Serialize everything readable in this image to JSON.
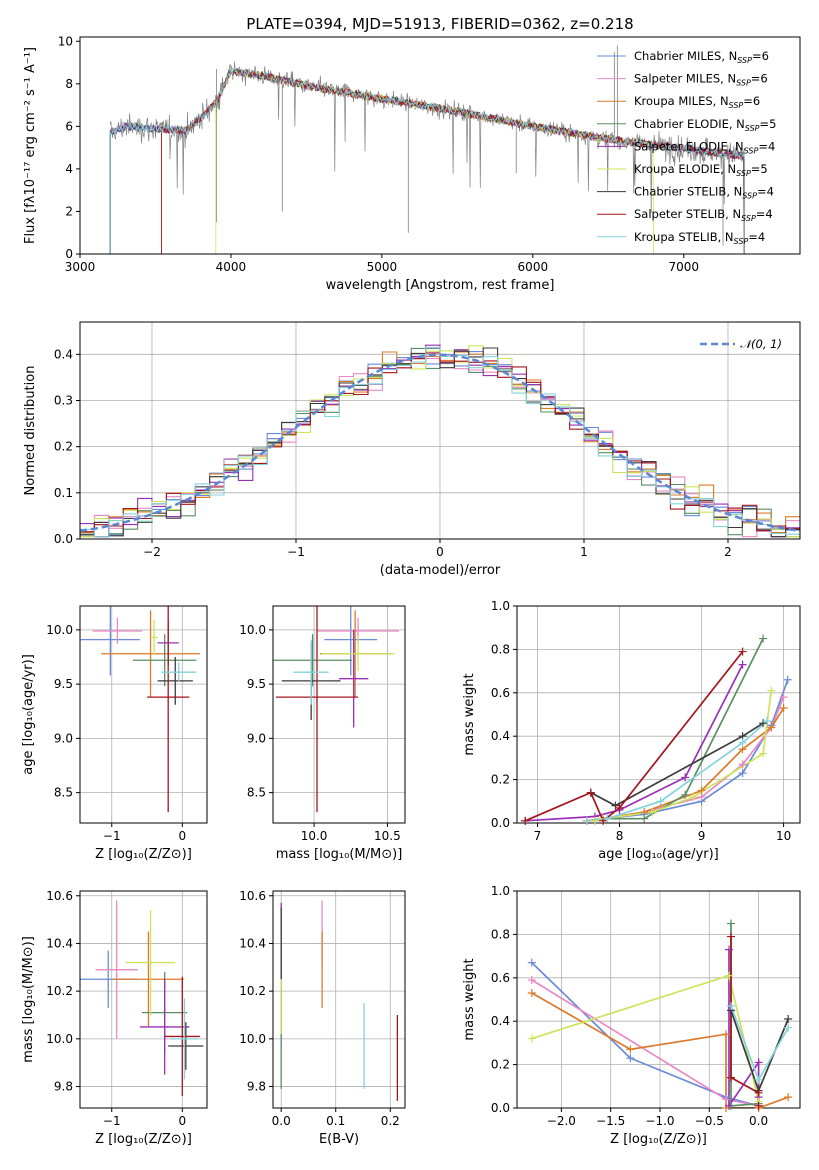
{
  "figure": {
    "title": "PLATE=0394, MJD=51913, FIBERID=0362, z=0.218"
  },
  "colors": {
    "Chabrier MILES": "#6a8bd8",
    "Salpeter MILES": "#e889c4",
    "Kroupa MILES": "#dd7a2a",
    "Chabrier ELODIE": "#5a8f64",
    "Salpeter ELODIE": "#9b2fb5",
    "Kroupa ELODIE": "#cde35a",
    "Chabrier STELIB": "#3a3a3a",
    "Salpeter STELIB": "#a3151c",
    "Kroupa STELIB": "#86d1dc",
    "data": "#808080",
    "normal": "#5b87d4"
  },
  "chart_data": [
    {
      "id": "spectrum",
      "type": "line",
      "title": "PLATE=0394, MJD=51913, FIBERID=0362, z=0.218",
      "xlabel": "wavelength [Angstrom, rest frame]",
      "ylabel": "Flux [fλ10⁻¹⁷ erg cm⁻² s⁻¹ A⁻¹]",
      "xlim": [
        3000,
        7770
      ],
      "ylim": [
        0,
        10.2
      ],
      "xticks": [
        3000,
        4000,
        5000,
        6000,
        7000
      ],
      "yticks": [
        0,
        2,
        4,
        6,
        8,
        10
      ],
      "legend_position": "top-right",
      "legend": [
        {
          "name": "Chabrier MILES",
          "label": "Chabrier MILES, N",
          "nssp": "=6"
        },
        {
          "name": "Salpeter MILES",
          "label": "Salpeter MILES, N",
          "nssp": "=6"
        },
        {
          "name": "Kroupa MILES",
          "label": "Kroupa MILES, N",
          "nssp": "=6"
        },
        {
          "name": "Chabrier ELODIE",
          "label": "Chabrier ELODIE, N",
          "nssp": "=5"
        },
        {
          "name": "Salpeter ELODIE",
          "label": "Salpeter ELODIE, N",
          "nssp": "=4"
        },
        {
          "name": "Kroupa ELODIE",
          "label": "Kroupa ELODIE, N",
          "nssp": "=5"
        },
        {
          "name": "Chabrier STELIB",
          "label": "Chabrier STELIB, N",
          "nssp": "=4"
        },
        {
          "name": "Salpeter STELIB",
          "label": "Salpeter STELIB, N",
          "nssp": "=4"
        },
        {
          "name": "Kroupa STELIB",
          "label": "Kroupa STELIB, N",
          "nssp": "=4"
        }
      ],
      "continuum": [
        [
          3200,
          5.7
        ],
        [
          3300,
          6.0
        ],
        [
          3500,
          5.9
        ],
        [
          3700,
          5.8
        ],
        [
          3800,
          6.4
        ],
        [
          3900,
          7.1
        ],
        [
          4000,
          8.6
        ],
        [
          4200,
          8.4
        ],
        [
          4500,
          7.9
        ],
        [
          5000,
          7.3
        ],
        [
          5500,
          6.7
        ],
        [
          6000,
          6.0
        ],
        [
          6500,
          5.4
        ],
        [
          7000,
          4.95
        ],
        [
          7400,
          4.6
        ]
      ],
      "model_ranges": [
        [
          3200,
          7400
        ],
        [
          3200,
          7400
        ],
        [
          3540,
          7400
        ],
        [
          3200,
          7400
        ],
        [
          3200,
          7400
        ],
        [
          3900,
          6800
        ],
        [
          3200,
          7400
        ],
        [
          3540,
          7400
        ],
        [
          3200,
          7400
        ]
      ]
    },
    {
      "id": "residuals",
      "type": "histogram",
      "xlabel": "(data-model)/error",
      "ylabel": "Normed distribution",
      "xlim": [
        -2.5,
        2.5
      ],
      "ylim": [
        0,
        0.47
      ],
      "xticks": [
        -2,
        -1,
        0,
        1,
        2
      ],
      "yticks": [
        0.0,
        0.1,
        0.2,
        0.3,
        0.4
      ],
      "legend": [
        "𝒩(0, 1)"
      ],
      "legend_position": "top-right",
      "bin_width": 0.1
    },
    {
      "id": "age-vs-z",
      "type": "scatter",
      "xlabel": "Z [log₁₀(Z/Z⊙)]",
      "ylabel": "age  [log₁₀(age/yr)]",
      "xlim": [
        -1.45,
        0.35
      ],
      "ylim": [
        8.22,
        10.22
      ],
      "xticks": [
        -1,
        0
      ],
      "yticks": [
        8.5,
        9.0,
        9.5,
        10.0
      ],
      "points": [
        {
          "x": -1.02,
          "y": 9.91,
          "xerr": 0.42,
          "yerr": 0.33
        },
        {
          "x": -0.92,
          "y": 9.99,
          "xerr": 0.35,
          "yerr": 0.12
        },
        {
          "x": -0.45,
          "y": 9.78,
          "xerr": 0.7,
          "yerr": 0.4
        },
        {
          "x": -0.25,
          "y": 9.72,
          "xerr": 0.45,
          "yerr": 0.24
        },
        {
          "x": -0.2,
          "y": 9.88,
          "xerr": 0.15,
          "yerr": 0.2
        },
        {
          "x": -0.4,
          "y": 9.93,
          "xerr": 0.05,
          "yerr": 0.16
        },
        {
          "x": -0.1,
          "y": 9.53,
          "xerr": 0.25,
          "yerr": 0.22
        },
        {
          "x": -0.2,
          "y": 9.38,
          "xerr": 0.3,
          "yerr": 1.06
        },
        {
          "x": -0.05,
          "y": 9.61,
          "xerr": 0.25,
          "yerr": 0.09
        }
      ]
    },
    {
      "id": "age-vs-mass",
      "type": "scatter",
      "xlabel": "mass [log₁₀(M/M⊙)]",
      "ylabel": "",
      "xlim": [
        9.72,
        10.62
      ],
      "ylim": [
        8.22,
        10.22
      ],
      "xticks": [
        10.0,
        10.5
      ],
      "yticks": [
        8.5,
        9.0,
        9.5,
        10.0
      ],
      "points": [
        {
          "x": 10.25,
          "y": 9.91,
          "xerr": 0.18,
          "yerr": 0.33
        },
        {
          "x": 10.3,
          "y": 9.99,
          "xerr": 0.28,
          "yerr": 0.12
        },
        {
          "x": 10.28,
          "y": 9.78,
          "xerr": 0.24,
          "yerr": 0.4
        },
        {
          "x": 9.99,
          "y": 9.72,
          "xerr": 0.27,
          "yerr": 0.24
        },
        {
          "x": 10.27,
          "y": 9.55,
          "xerr": 0.1,
          "yerr": 0.45
        },
        {
          "x": 10.3,
          "y": 9.78,
          "xerr": 0.25,
          "yerr": 0.16
        },
        {
          "x": 9.98,
          "y": 9.53,
          "xerr": 0.2,
          "yerr": 0.36
        },
        {
          "x": 10.02,
          "y": 9.38,
          "xerr": 0.28,
          "yerr": 1.06
        },
        {
          "x": 9.98,
          "y": 9.61,
          "xerr": 0.12,
          "yerr": 0.3
        }
      ]
    },
    {
      "id": "weight-vs-age",
      "type": "line",
      "xlabel": "age  [log₁₀(age/yr)]",
      "ylabel": "mass weight",
      "xlim": [
        6.75,
        10.2
      ],
      "ylim": [
        0,
        1.0
      ],
      "xticks": [
        7,
        8,
        9,
        10
      ],
      "yticks": [
        0.0,
        0.2,
        0.4,
        0.6,
        0.8,
        1.0
      ],
      "series": [
        {
          "x": [
            7.6,
            7.8,
            8.3,
            9.0,
            9.5,
            9.85,
            10.05
          ],
          "y": [
            0.01,
            0.02,
            0.04,
            0.1,
            0.23,
            0.45,
            0.66
          ]
        },
        {
          "x": [
            7.6,
            7.8,
            8.3,
            9.0,
            9.5,
            9.85,
            10.0
          ],
          "y": [
            0.01,
            0.02,
            0.05,
            0.12,
            0.27,
            0.44,
            0.58
          ]
        },
        {
          "x": [
            7.6,
            7.8,
            8.3,
            9.0,
            9.5,
            9.85,
            10.0
          ],
          "y": [
            0.01,
            0.02,
            0.05,
            0.15,
            0.34,
            0.44,
            0.53
          ]
        },
        {
          "x": [
            7.7,
            7.8,
            8.3,
            8.8,
            9.75
          ],
          "y": [
            0.01,
            0.02,
            0.02,
            0.13,
            0.85
          ]
        },
        {
          "x": [
            6.85,
            7.7,
            8.0,
            8.8,
            9.5
          ],
          "y": [
            0.01,
            0.03,
            0.06,
            0.21,
            0.73
          ]
        },
        {
          "x": [
            7.7,
            7.8,
            8.4,
            8.9,
            9.75,
            9.85
          ],
          "y": [
            0.01,
            0.02,
            0.05,
            0.12,
            0.32,
            0.61
          ]
        },
        {
          "x": [
            7.65,
            7.95,
            9.5,
            9.75
          ],
          "y": [
            0.14,
            0.08,
            0.4,
            0.46
          ]
        },
        {
          "x": [
            6.85,
            7.65,
            7.8,
            8.0,
            9.5
          ],
          "y": [
            0.01,
            0.14,
            0.01,
            0.07,
            0.79
          ]
        },
        {
          "x": [
            7.6,
            7.85,
            8.5,
            9.5,
            9.8
          ],
          "y": [
            0.01,
            0.02,
            0.1,
            0.37,
            0.47
          ]
        }
      ]
    },
    {
      "id": "mass-vs-z",
      "type": "scatter",
      "xlabel": "Z [log₁₀(Z/Z⊙)]",
      "ylabel": "mass [log₁₀(M/M⊙)]",
      "xlim": [
        -1.45,
        0.35
      ],
      "ylim": [
        9.71,
        10.62
      ],
      "xticks": [
        -1,
        0
      ],
      "yticks": [
        9.8,
        10.0,
        10.2,
        10.4,
        10.6
      ],
      "points": [
        {
          "x": -1.05,
          "y": 10.25,
          "xerr": 0.42,
          "yerr": 0.12
        },
        {
          "x": -0.93,
          "y": 10.29,
          "xerr": 0.3,
          "yerr": 0.29
        },
        {
          "x": -0.48,
          "y": 10.25,
          "xerr": 0.5,
          "yerr": 0.2
        },
        {
          "x": -0.25,
          "y": 10.11,
          "xerr": 0.32,
          "yerr": 0.17
        },
        {
          "x": -0.25,
          "y": 10.05,
          "xerr": 0.35,
          "yerr": 0.2
        },
        {
          "x": -0.45,
          "y": 10.32,
          "xerr": 0.35,
          "yerr": 0.22
        },
        {
          "x": 0.05,
          "y": 9.97,
          "xerr": 0.25,
          "yerr": 0.1
        },
        {
          "x": 0.0,
          "y": 10.01,
          "xerr": 0.25,
          "yerr": 0.25
        },
        {
          "x": 0.03,
          "y": 10.0,
          "xerr": 0.2,
          "yerr": 0.17
        }
      ]
    },
    {
      "id": "mass-vs-ebv",
      "type": "scatter",
      "xlabel": "E(B-V)",
      "ylabel": "",
      "xlim": [
        -0.015,
        0.227
      ],
      "ylim": [
        9.71,
        10.62
      ],
      "xticks": [
        0.0,
        0.1,
        0.2
      ],
      "yticks": [
        9.8,
        10.0,
        10.2,
        10.4,
        10.6
      ],
      "points": [
        {
          "x": 0.0,
          "y": 10.25,
          "xerr": 0,
          "yerr": 0.28
        },
        {
          "x": 0.075,
          "y": 10.45,
          "xerr": 0,
          "yerr": 0.13
        },
        {
          "x": 0.075,
          "y": 10.29,
          "xerr": 0,
          "yerr": 0.16
        },
        {
          "x": 0.0,
          "y": 10.0,
          "xerr": 0,
          "yerr": 0.21
        },
        {
          "x": 0.0,
          "y": 10.3,
          "xerr": 0,
          "yerr": 0.27
        },
        {
          "x": 0.0,
          "y": 10.28,
          "xerr": 0,
          "yerr": 0.26
        },
        {
          "x": 0.0,
          "y": 10.4,
          "xerr": 0,
          "yerr": 0.15
        },
        {
          "x": 0.213,
          "y": 9.92,
          "xerr": 0,
          "yerr": 0.18
        },
        {
          "x": 0.152,
          "y": 9.97,
          "xerr": 0,
          "yerr": 0.18
        }
      ]
    },
    {
      "id": "weight-vs-z",
      "type": "line",
      "xlabel": "Z [log₁₀(Z/Z⊙)]",
      "ylabel": "mass weight",
      "xlim": [
        -2.45,
        0.42
      ],
      "ylim": [
        0,
        1.0
      ],
      "xticks": [
        -2.0,
        -1.5,
        -1.0,
        -0.5,
        0.0
      ],
      "yticks": [
        0.0,
        0.2,
        0.4,
        0.6,
        0.8,
        1.0
      ],
      "series": [
        {
          "x": [
            -2.3,
            -1.3,
            -0.33,
            0.0
          ],
          "y": [
            0.67,
            0.23,
            0.05,
            0.01
          ]
        },
        {
          "x": [
            -2.3,
            -0.33,
            0.0
          ],
          "y": [
            0.59,
            0.04,
            0.01
          ]
        },
        {
          "x": [
            -2.3,
            -1.3,
            -0.33,
            -0.33,
            0.0,
            0.3
          ],
          "y": [
            0.53,
            0.27,
            0.34,
            0.0,
            0.0,
            0.05
          ]
        },
        {
          "x": [
            -0.28,
            -0.28,
            0.0
          ],
          "y": [
            0.85,
            0.01,
            0.02
          ]
        },
        {
          "x": [
            -0.3,
            -0.3,
            0.0,
            0.0
          ],
          "y": [
            0.73,
            0.01,
            0.21,
            0.05
          ]
        },
        {
          "x": [
            -2.3,
            -0.3,
            0.0
          ],
          "y": [
            0.32,
            0.61,
            0.03
          ]
        },
        {
          "x": [
            -0.28,
            0.0,
            0.3
          ],
          "y": [
            0.45,
            0.08,
            0.41
          ]
        },
        {
          "x": [
            -0.28,
            -0.28,
            0.0,
            0.0
          ],
          "y": [
            0.79,
            0.14,
            0.07,
            0.01
          ]
        },
        {
          "x": [
            -0.28,
            0.0,
            0.3
          ],
          "y": [
            0.47,
            0.13,
            0.37
          ]
        }
      ]
    }
  ]
}
